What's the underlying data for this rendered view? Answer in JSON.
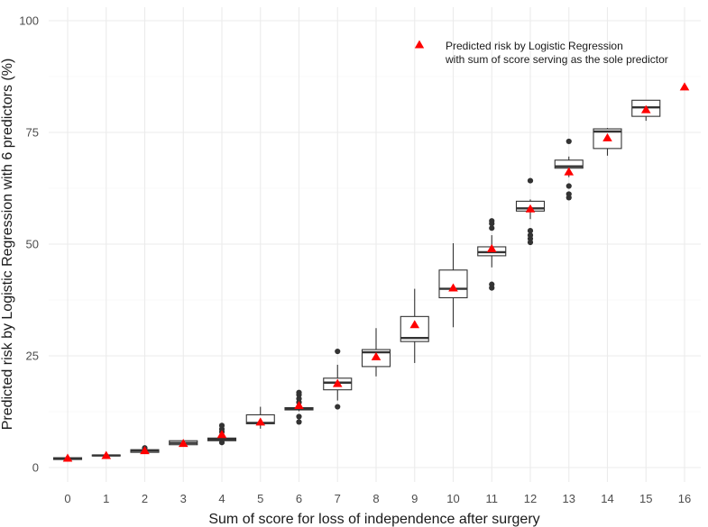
{
  "chart_data": {
    "type": "boxplot",
    "xlabel": "Sum of score for loss of independence after surgery",
    "ylabel": "Predicted risk by Logistic Regression with 6 predictors (%)",
    "ylim": [
      0,
      100
    ],
    "y_ticks": [
      0,
      25,
      50,
      75,
      100
    ],
    "categories": [
      "0",
      "1",
      "2",
      "3",
      "4",
      "5",
      "6",
      "7",
      "8",
      "9",
      "10",
      "11",
      "12",
      "13",
      "14",
      "15",
      "16"
    ],
    "grid": true,
    "legend": {
      "position": "top-right",
      "marker": "red-triangle",
      "line1": "Predicted risk by Logistic Regression",
      "line2": "with sum of score serving as the sole predictor"
    },
    "boxes": [
      {
        "x": 0,
        "q1": 1.8,
        "median": 2.0,
        "q3": 2.2,
        "low": 1.8,
        "high": 2.2,
        "outliers": []
      },
      {
        "x": 1,
        "q1": 2.6,
        "median": 2.7,
        "q3": 2.8,
        "low": 2.6,
        "high": 2.8,
        "outliers": []
      },
      {
        "x": 2,
        "q1": 3.4,
        "median": 3.8,
        "q3": 4.0,
        "low": 3.3,
        "high": 4.0,
        "outliers": [
          4.4
        ]
      },
      {
        "x": 3,
        "q1": 5.1,
        "median": 5.5,
        "q3": 6.0,
        "low": 5.0,
        "high": 6.2,
        "outliers": []
      },
      {
        "x": 4,
        "q1": 6.0,
        "median": 6.3,
        "q3": 6.6,
        "low": 5.9,
        "high": 6.7,
        "outliers": [
          5.6,
          7.2,
          8.0,
          8.6,
          9.4
        ]
      },
      {
        "x": 5,
        "q1": 9.8,
        "median": 10.0,
        "q3": 11.8,
        "low": 8.7,
        "high": 13.6,
        "outliers": []
      },
      {
        "x": 6,
        "q1": 12.9,
        "median": 13.1,
        "q3": 13.4,
        "low": 12.6,
        "high": 13.7,
        "outliers": [
          10.2,
          11.4,
          14.6,
          15.4,
          16.3,
          16.8
        ]
      },
      {
        "x": 7,
        "q1": 17.4,
        "median": 19.0,
        "q3": 20.0,
        "low": 15.0,
        "high": 23.0,
        "outliers": [
          13.6,
          26.0
        ]
      },
      {
        "x": 8,
        "q1": 22.6,
        "median": 25.8,
        "q3": 26.4,
        "low": 20.4,
        "high": 31.2,
        "outliers": []
      },
      {
        "x": 9,
        "q1": 28.2,
        "median": 29.0,
        "q3": 33.8,
        "low": 23.4,
        "high": 40.0,
        "outliers": []
      },
      {
        "x": 10,
        "q1": 38.0,
        "median": 40.0,
        "q3": 44.2,
        "low": 31.4,
        "high": 50.2,
        "outliers": []
      },
      {
        "x": 11,
        "q1": 47.4,
        "median": 48.2,
        "q3": 49.4,
        "low": 44.8,
        "high": 52.0,
        "outliers": [
          40.2,
          41.0,
          53.6,
          54.6,
          55.2
        ]
      },
      {
        "x": 12,
        "q1": 57.4,
        "median": 58.0,
        "q3": 59.6,
        "low": 55.6,
        "high": 60.0,
        "outliers": [
          50.4,
          51.2,
          52.0,
          53.0,
          64.2
        ]
      },
      {
        "x": 13,
        "q1": 67.0,
        "median": 67.4,
        "q3": 68.8,
        "low": 65.0,
        "high": 69.6,
        "outliers": [
          60.4,
          61.2,
          63.0,
          73.0
        ]
      },
      {
        "x": 14,
        "q1": 71.4,
        "median": 75.2,
        "q3": 75.8,
        "low": 69.8,
        "high": 76.0,
        "outliers": []
      },
      {
        "x": 15,
        "q1": 78.6,
        "median": 80.6,
        "q3": 82.2,
        "low": 77.6,
        "high": 82.2,
        "outliers": []
      },
      {
        "x": 16,
        "q1": null,
        "median": null,
        "q3": null,
        "low": null,
        "high": null,
        "outliers": []
      }
    ],
    "series": [
      {
        "name": "Predicted risk by Logistic Regression with sum of score serving as the sole predictor",
        "marker": "triangle",
        "color": "#ff0000",
        "x": [
          0,
          1,
          2,
          3,
          4,
          5,
          6,
          7,
          8,
          9,
          10,
          11,
          12,
          13,
          14,
          15,
          16
        ],
        "values": [
          2.0,
          2.6,
          3.7,
          5.3,
          7.3,
          10.1,
          13.8,
          18.7,
          24.7,
          31.9,
          40.1,
          48.9,
          57.8,
          66.1,
          73.7,
          80.0,
          85.1
        ]
      }
    ]
  }
}
